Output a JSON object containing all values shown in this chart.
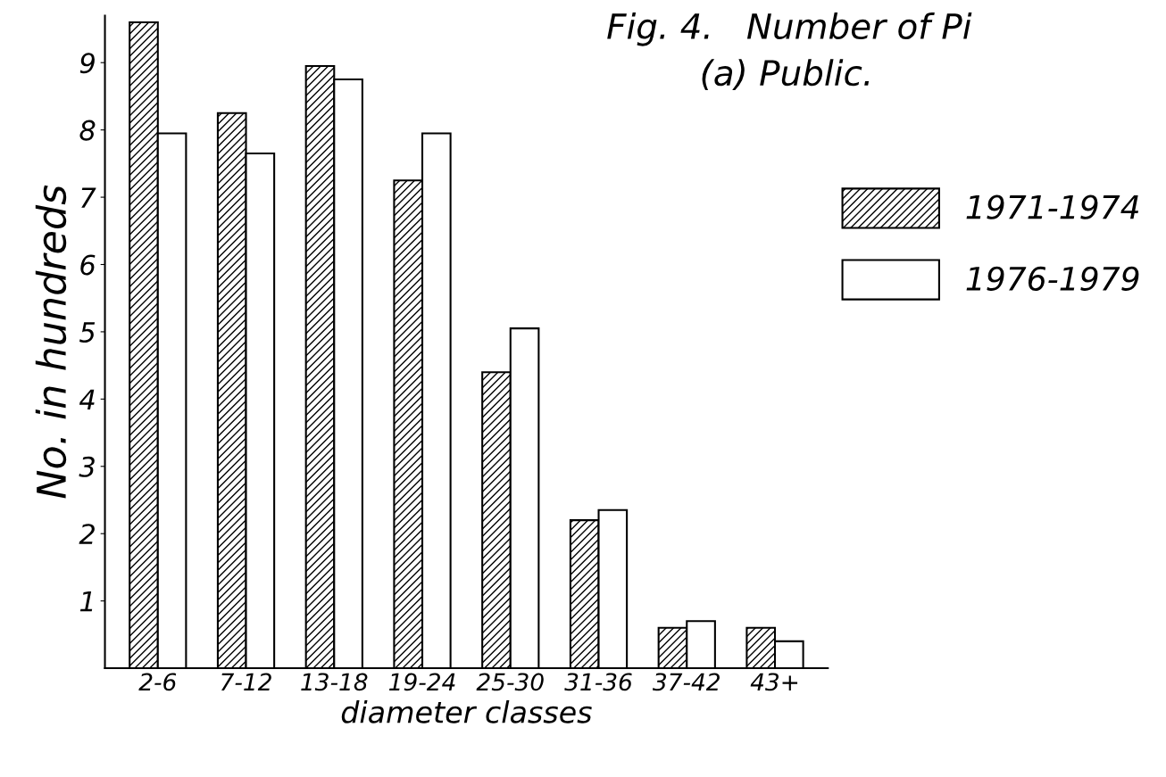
{
  "chart_data": {
    "type": "bar",
    "title": "Fig. 4.   Number of Pi",
    "subtitle": "(a) Public.",
    "xlabel": "diameter classes",
    "ylabel": "No. in hundreds",
    "categories": [
      "2-6",
      "7-12",
      "13-18",
      "19-24",
      "25-30",
      "31-36",
      "37-42",
      "43+"
    ],
    "series": [
      {
        "name": "1971-1974",
        "color": "#000000",
        "values": [
          9.6,
          8.25,
          8.95,
          7.25,
          4.4,
          2.2,
          0.6,
          0.6
        ]
      },
      {
        "name": "1976-1979",
        "color": "#ffffff",
        "values": [
          7.95,
          7.65,
          8.75,
          7.95,
          5.05,
          2.35,
          0.7,
          0.4
        ]
      }
    ],
    "ylim": [
      0,
      9.7
    ],
    "yticks": [
      1,
      2,
      3,
      4,
      5,
      6,
      7,
      8,
      9
    ],
    "grid": false,
    "legend": "right"
  }
}
